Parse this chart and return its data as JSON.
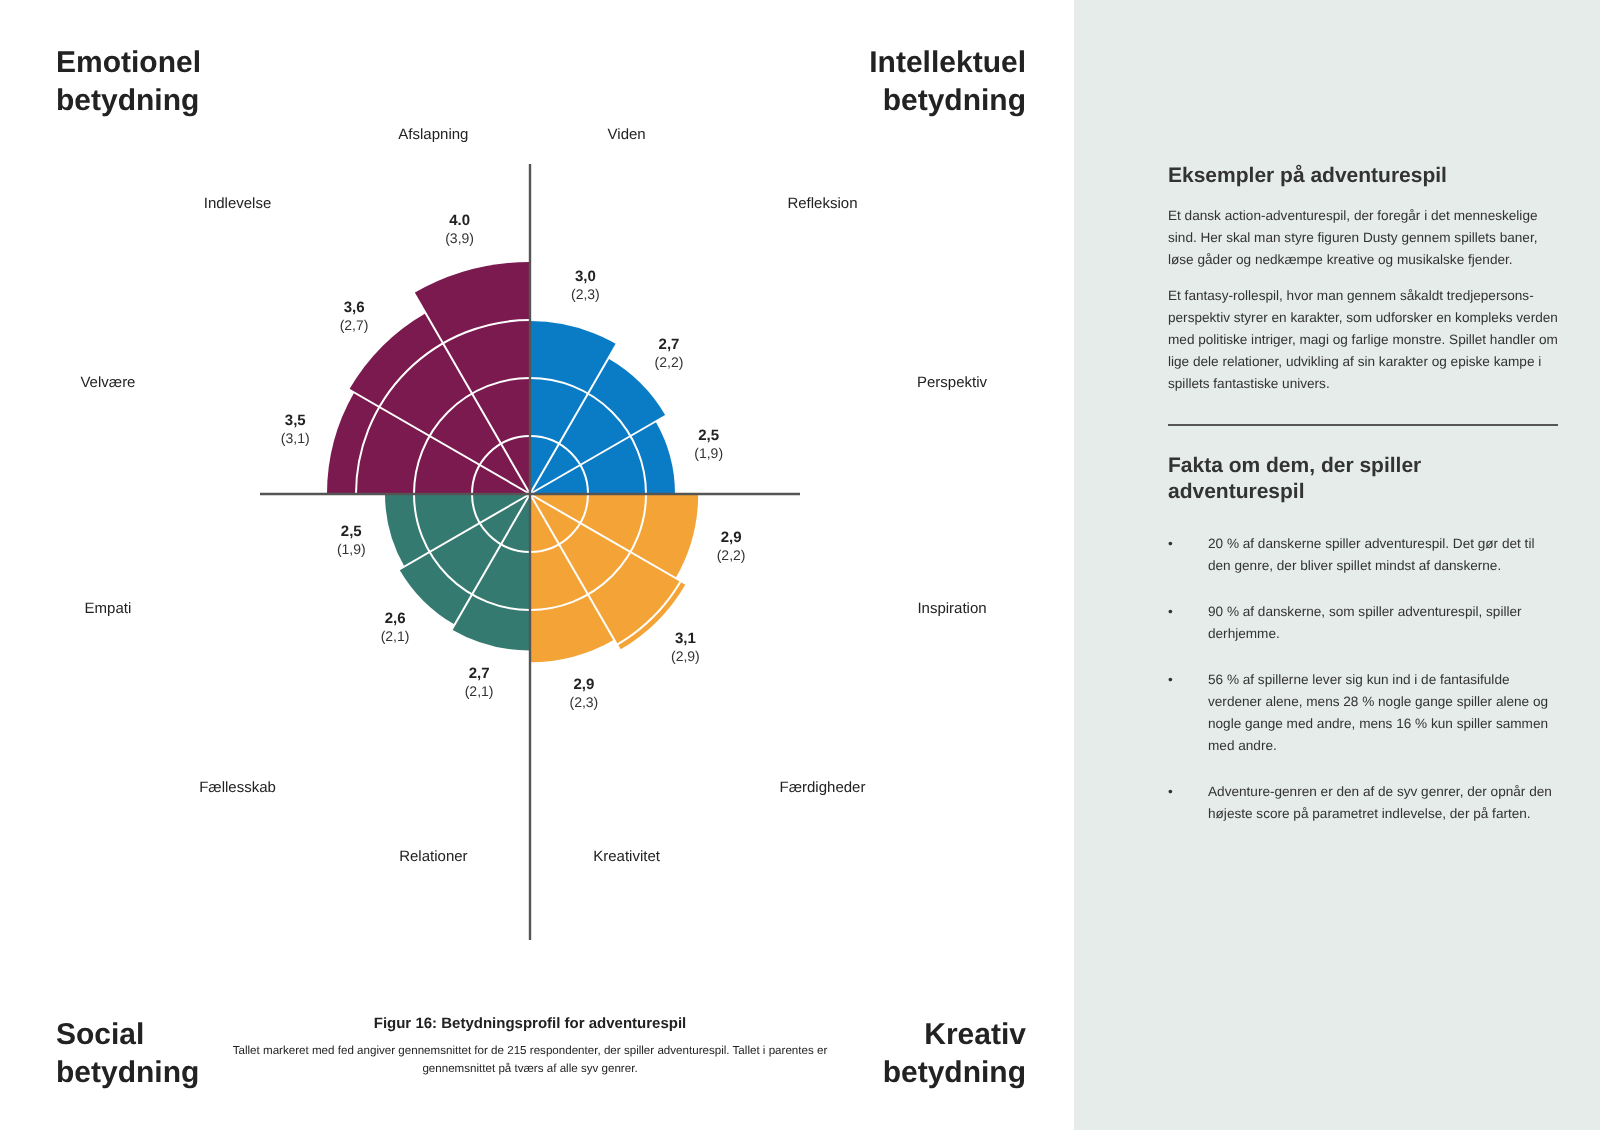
{
  "chart_data": {
    "type": "other",
    "title": "Figur 16: Betydningsprofil for adventurespil",
    "categories": [
      "Viden",
      "Refleksion",
      "Perspektiv",
      "Inspiration",
      "Færdigheder",
      "Kreativitet",
      "Relationer",
      "Fællesskab",
      "Empati",
      "Velvære",
      "Indlevelse",
      "Afslapning"
    ],
    "values": [
      3.0,
      2.7,
      2.5,
      2.9,
      3.1,
      2.9,
      2.7,
      2.6,
      2.5,
      3.5,
      3.6,
      4.0
    ],
    "value_labels": [
      "3,0",
      "2,7",
      "2,5",
      "2,9",
      "3,1",
      "2,9",
      "2,7",
      "2,6",
      "2,5",
      "3,5",
      "3,6",
      "4.0"
    ],
    "colors": [
      "#0a7bc5",
      "#0a7bc5",
      "#0a7bc5",
      "#f4a436",
      "#f4a436",
      "#f4a436",
      "#357a70",
      "#357a70",
      "#357a70",
      "#7a1a4f",
      "#7a1a4f",
      "#7a1a4f"
    ],
    "annotations": [
      "Emotionel betydning",
      "Intellektuel betydning",
      "Social betydning",
      "Kreativ betydning",
      "Tallet markeret med fed angiver gennemsnittet for de 215 respondenter, der spiller adventurespil. Tallet i parentes er gennemsnittet på tværs af alle syv genrer.",
      "Eksempler på adventurespil",
      "Et dansk action-adventurespil, der foregår i det menneskelige sind. Her skal man styre figuren Dusty gennem spillets baner, løse gåder og nedkæmpe kreative og musikalske fjender.",
      "Et fantasy-rollespil, hvor man gennem såkaldt tredjepersons-perspektiv styrer en karakter, som udforsker en kompleks verden med politiske intriger, magi og farlige monstre. Spillet handler om lige dele relationer, udvikling af sin karakter og episke kampe i spillets fantastiske univers.",
      "Fakta om dem, der spiller adventurespil",
      "20 % af danskerne spiller adventurespil. Det gør det til den genre, der bliver spillet mindst af danskerne.",
      "90 % af danskerne, som spiller adventurespil, spiller derhjemme.",
      "56 % af spillerne lever sig kun ind i de fantasifulde verdener alene, mens 28 % nogle gange spiller alene og nogle gange med andre, mens 16 % kun spiller sammen med andre.",
      "Adventure-genren er den af de syv genrer, der opnår den højeste score på parametret indlevelse, der på farten.",
      "•",
      "(2,3)",
      "(2,2)",
      "(1,9)",
      "(2,2)",
      "(2,9)",
      "(2,3)",
      "(2,1)",
      "(2,1)",
      "(1,9)",
      "(3,1)",
      "(2,7)",
      "(3,9)"
    ]
  }
}
